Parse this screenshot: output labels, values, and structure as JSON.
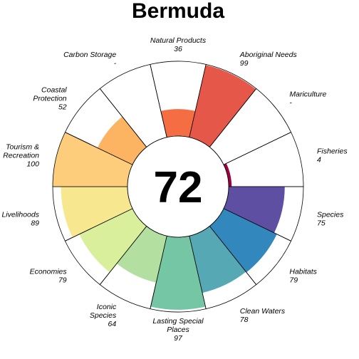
{
  "chart_data": {
    "type": "flower",
    "title": "Bermuda",
    "center_score": "72",
    "petals": [
      {
        "name": "Natural Products",
        "name_lines": [
          "Natural Products"
        ],
        "score": "36",
        "value": 36,
        "color": "#f46d43"
      },
      {
        "name": "Aboriginal Needs",
        "name_lines": [
          "Aboriginal Needs"
        ],
        "score": "99",
        "value": 99,
        "color": "#e55749"
      },
      {
        "name": "Mariculture",
        "name_lines": [
          "Mariculture"
        ],
        "score": "-",
        "value": null,
        "color": "#d53e4f"
      },
      {
        "name": "Fisheries",
        "name_lines": [
          "Fisheries"
        ],
        "score": "4",
        "value": 4,
        "color": "#9e0142"
      },
      {
        "name": "Species",
        "name_lines": [
          "Species"
        ],
        "score": "75",
        "value": 75,
        "color": "#5e4fa2"
      },
      {
        "name": "Habitats",
        "name_lines": [
          "Habitats"
        ],
        "score": "79",
        "value": 79,
        "color": "#3288bd"
      },
      {
        "name": "Clean Waters",
        "name_lines": [
          "Clean Waters"
        ],
        "score": "78",
        "value": 78,
        "color": "#56a9b4"
      },
      {
        "name": "Lasting Special Places",
        "name_lines": [
          "Lasting Special",
          "Places"
        ],
        "score": "97",
        "value": 97,
        "color": "#74c6a4"
      },
      {
        "name": "Iconic Species",
        "name_lines": [
          "Iconic",
          "Species"
        ],
        "score": "64",
        "value": 64,
        "color": "#b3dfa0"
      },
      {
        "name": "Economies",
        "name_lines": [
          "Economies"
        ],
        "score": "79",
        "value": 79,
        "color": "#d9ef9b"
      },
      {
        "name": "Livelihoods",
        "name_lines": [
          "Livelihoods"
        ],
        "score": "89",
        "value": 89,
        "color": "#f7e78f"
      },
      {
        "name": "Tourism & Recreation",
        "name_lines": [
          "Tourism &",
          "Recreation"
        ],
        "score": "100",
        "value": 100,
        "color": "#fdcd7c"
      },
      {
        "name": "Coastal Protection",
        "name_lines": [
          "Coastal",
          "Protection"
        ],
        "score": "52",
        "value": 52,
        "color": "#fdb462"
      },
      {
        "name": "Carbon Storage",
        "name_lines": [
          "Carbon Storage"
        ],
        "score": "-",
        "value": null,
        "color": "#fc9e57"
      }
    ],
    "ylim": [
      0,
      100
    ]
  }
}
